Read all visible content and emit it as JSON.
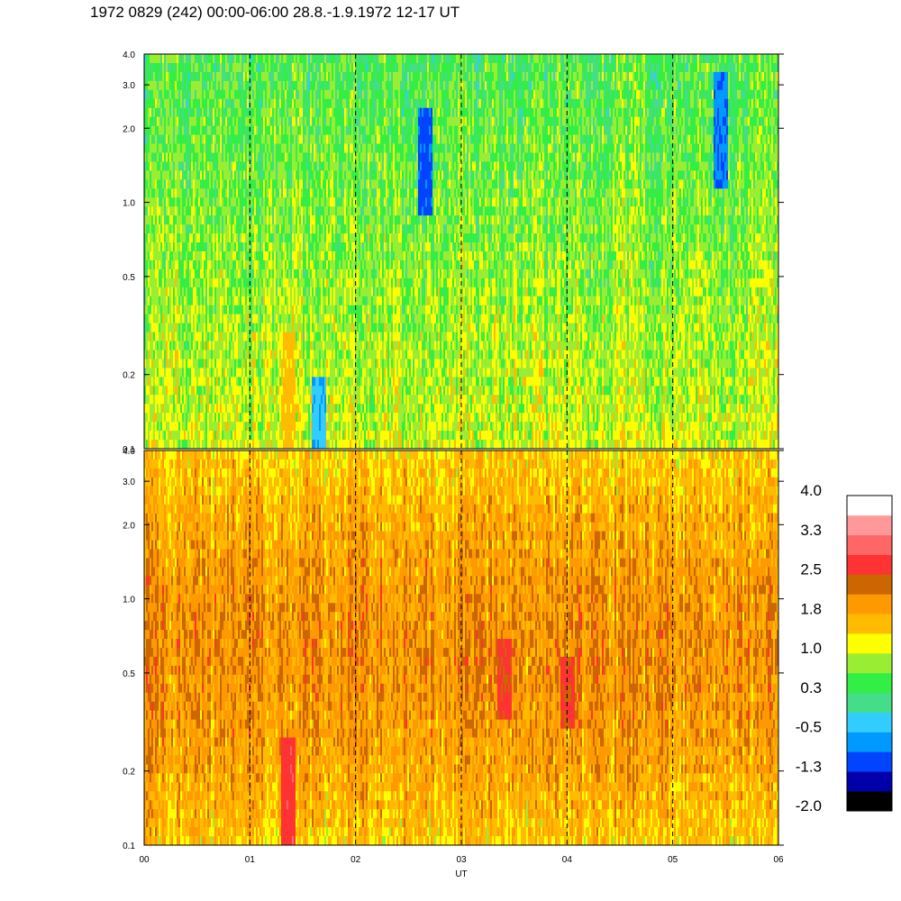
{
  "title": "1972 0829 (242) 00:00-06:00 28.8.-1.9.1972  12-17 UT",
  "chart_data": [
    {
      "type": "heatmap",
      "panel": "upper",
      "x": {
        "label": "",
        "range": [
          0,
          6
        ],
        "ticks": [
          "00",
          "01",
          "02",
          "03",
          "04",
          "05",
          "06"
        ]
      },
      "y": {
        "scale": "log",
        "range": [
          0.1,
          4.0
        ],
        "ticks": [
          0.1,
          0.2,
          0.5,
          1.0,
          2.0,
          3.0,
          4.0
        ],
        "tick_labels": [
          "0.1",
          "0.2",
          "0.5",
          "1.0",
          "2.0",
          "3.0",
          "4.0"
        ]
      },
      "gridlines": "dashed vertical at each hour",
      "dominant_level_range": [
        -0.5,
        1.2
      ],
      "features": [
        {
          "x": 1.35,
          "y_range": [
            0.1,
            0.3
          ],
          "level": 1.5
        },
        {
          "x": 1.65,
          "y_range": [
            0.1,
            0.2
          ],
          "level": -0.4
        },
        {
          "x": 2.65,
          "y_range": [
            0.9,
            2.5
          ],
          "level": -1.0
        },
        {
          "x": 5.45,
          "y_range": [
            1.2,
            3.5
          ],
          "level": -0.8
        }
      ]
    },
    {
      "type": "heatmap",
      "panel": "lower",
      "x": {
        "label": "UT",
        "range": [
          0,
          6
        ],
        "ticks": [
          "00",
          "01",
          "02",
          "03",
          "04",
          "05",
          "06"
        ]
      },
      "y": {
        "scale": "log",
        "range": [
          0.1,
          4.0
        ],
        "ticks": [
          0.1,
          0.2,
          0.5,
          1.0,
          2.0,
          3.0,
          4.0
        ],
        "tick_labels": [
          "0.1",
          "0.2",
          "0.5",
          "1.0",
          "2.0",
          "3.0",
          "4.0"
        ]
      },
      "gridlines": "dashed vertical at each hour",
      "dominant_level_range": [
        1.0,
        2.3
      ],
      "features": [
        {
          "x": 1.35,
          "y_range": [
            0.1,
            0.28
          ],
          "level": 2.7
        },
        {
          "x": 3.4,
          "y_range": [
            0.35,
            0.7
          ],
          "level": 2.6
        },
        {
          "x": 4.0,
          "y_range": [
            0.3,
            0.6
          ],
          "level": 2.6
        }
      ]
    }
  ],
  "colorbar": {
    "tick_labels": [
      "4.0",
      "3.3",
      "2.5",
      "1.8",
      "1.0",
      "0.3",
      "-0.5",
      "-1.3",
      "-2.0"
    ],
    "colors": [
      "#000000",
      "#0000aa",
      "#0044ff",
      "#0099ff",
      "#33ccff",
      "#44dd88",
      "#33ee44",
      "#99ee33",
      "#ffff00",
      "#ffbb00",
      "#ff9900",
      "#cc6600",
      "#ff3333",
      "#ff6666",
      "#ff9999",
      "#ffffff"
    ]
  }
}
